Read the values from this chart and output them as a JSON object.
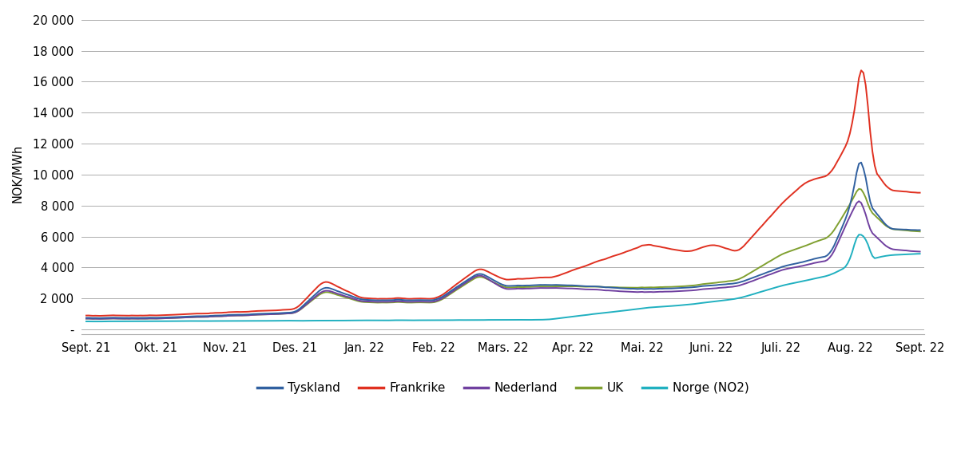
{
  "title": "",
  "ylabel": "NOK/MWh",
  "xtick_labels": [
    "Sept. 21",
    "Okt. 21",
    "Nov. 21",
    "Des. 21",
    "Jan. 22",
    "Feb. 22",
    "Mars. 22",
    "Apr. 22",
    "Mai. 22",
    "Juni. 22",
    "Juli. 22",
    "Aug. 22",
    "Sept. 22"
  ],
  "ytick_values": [
    0,
    2000,
    4000,
    6000,
    8000,
    10000,
    12000,
    14000,
    16000,
    18000,
    20000
  ],
  "ytick_labels": [
    "-",
    "2 000",
    "4 000",
    "6 000",
    "8 000",
    "10 000",
    "12 000",
    "14 000",
    "16 000",
    "18 000",
    "20 000"
  ],
  "ylim": [
    -300,
    20500
  ],
  "legend_labels": [
    "Tyskland",
    "Frankrike",
    "Nederland",
    "UK",
    "Norge (NO2)"
  ],
  "colors": {
    "Tyskland": "#3060A0",
    "Frankrike": "#E03020",
    "Nederland": "#7040A0",
    "UK": "#80A030",
    "Norge (NO2)": "#20B0C0"
  },
  "background_color": "#ffffff",
  "grid_color": "#a0a0a0",
  "line_width": 1.4,
  "n_points": 370
}
